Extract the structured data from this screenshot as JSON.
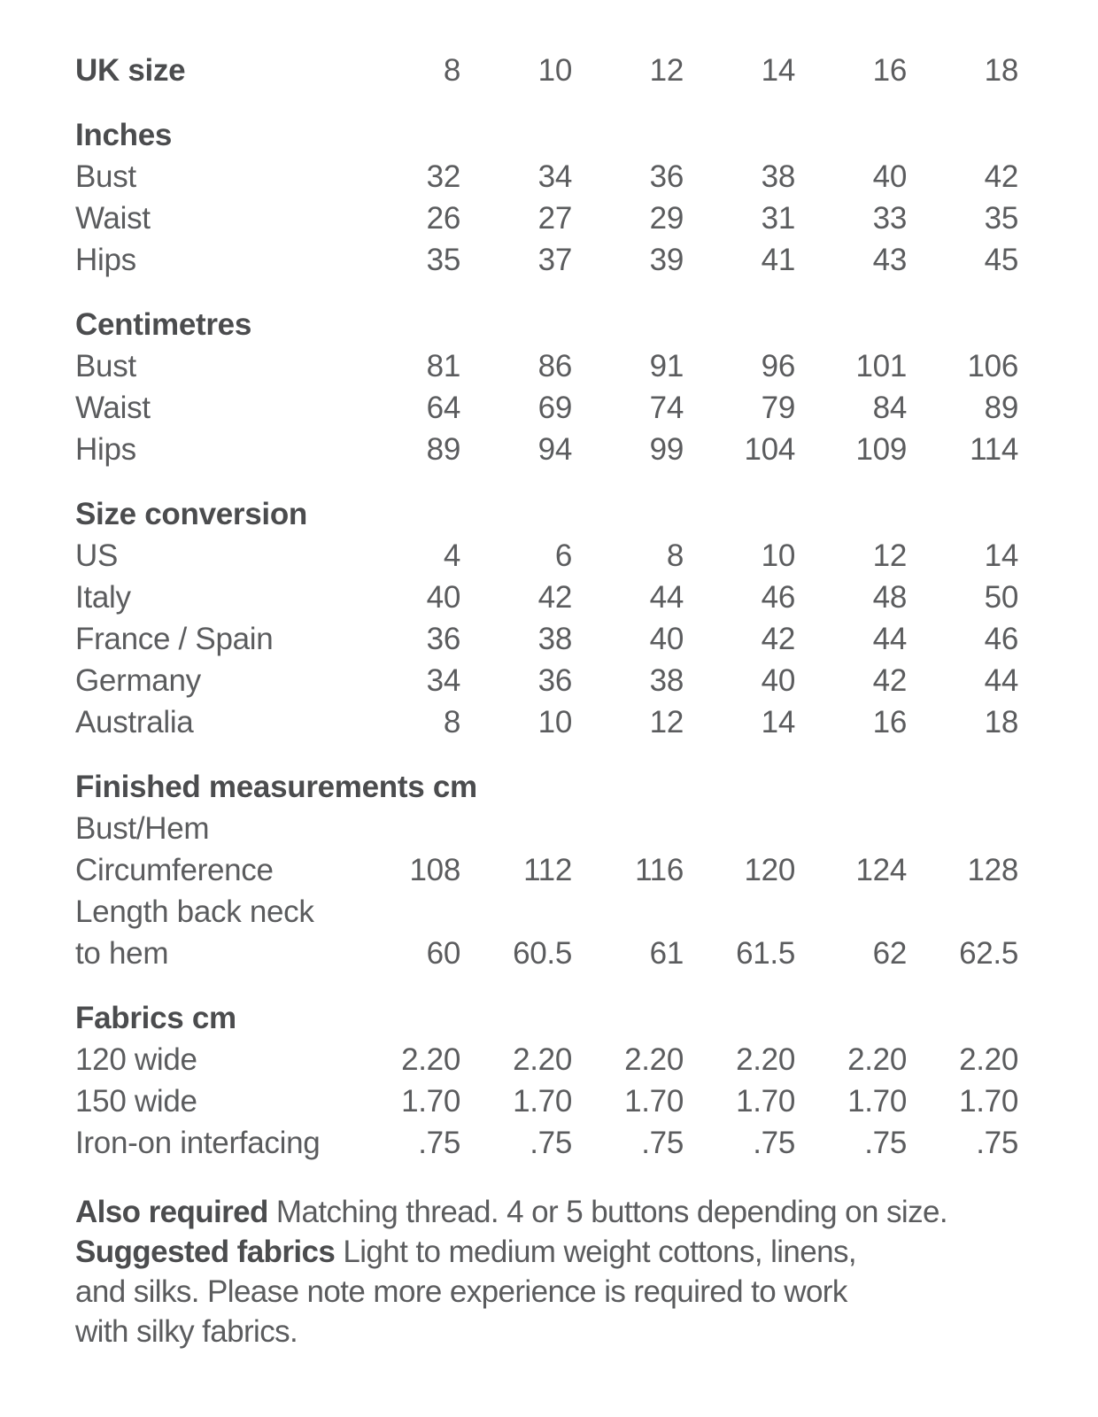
{
  "colors": {
    "background": "#ffffff",
    "body_text": "#5b5c5e",
    "heading_text": "#4b4c4e"
  },
  "table": {
    "header": {
      "label": "UK size",
      "values": [
        "8",
        "10",
        "12",
        "14",
        "16",
        "18"
      ]
    },
    "sections": [
      {
        "title": "Inches",
        "rows": [
          {
            "label": "Bust",
            "values": [
              "32",
              "34",
              "36",
              "38",
              "40",
              "42"
            ]
          },
          {
            "label": "Waist",
            "values": [
              "26",
              "27",
              "29",
              "31",
              "33",
              "35"
            ]
          },
          {
            "label": "Hips",
            "values": [
              "35",
              "37",
              "39",
              "41",
              "43",
              "45"
            ]
          }
        ]
      },
      {
        "title": "Centimetres",
        "rows": [
          {
            "label": "Bust",
            "values": [
              "81",
              "86",
              "91",
              "96",
              "101",
              "106"
            ]
          },
          {
            "label": "Waist",
            "values": [
              "64",
              "69",
              "74",
              "79",
              "84",
              "89"
            ]
          },
          {
            "label": "Hips",
            "values": [
              "89",
              "94",
              "99",
              "104",
              "109",
              "114"
            ]
          }
        ]
      },
      {
        "title": "Size conversion",
        "rows": [
          {
            "label": "US",
            "values": [
              "4",
              "6",
              "8",
              "10",
              "12",
              "14"
            ]
          },
          {
            "label": "Italy",
            "values": [
              "40",
              "42",
              "44",
              "46",
              "48",
              "50"
            ]
          },
          {
            "label": "France / Spain",
            "values": [
              "36",
              "38",
              "40",
              "42",
              "44",
              "46"
            ]
          },
          {
            "label": "Germany",
            "values": [
              "34",
              "36",
              "38",
              "40",
              "42",
              "44"
            ]
          },
          {
            "label": "Australia",
            "values": [
              "8",
              "10",
              "12",
              "14",
              "16",
              "18"
            ]
          }
        ]
      },
      {
        "title": "Finished measurements cm",
        "rows": [
          {
            "label": "Bust/Hem",
            "values": []
          },
          {
            "label": "Circumference",
            "values": [
              "108",
              "112",
              "116",
              "120",
              "124",
              "128"
            ]
          },
          {
            "label": "Length back neck",
            "values": []
          },
          {
            "label": "to hem",
            "values": [
              "60",
              "60.5",
              "61",
              "61.5",
              "62",
              "62.5"
            ]
          }
        ]
      },
      {
        "title": "Fabrics cm",
        "rows": [
          {
            "label": "120 wide",
            "values": [
              "2.20",
              "2.20",
              "2.20",
              "2.20",
              "2.20",
              "2.20"
            ]
          },
          {
            "label": "150 wide",
            "values": [
              "1.70",
              "1.70",
              "1.70",
              "1.70",
              "1.70",
              "1.70"
            ]
          },
          {
            "label": "Iron-on interfacing",
            "values": [
              ".75",
              ".75",
              ".75",
              ".75",
              ".75",
              ".75"
            ]
          }
        ]
      }
    ]
  },
  "notes": {
    "also_required_label": "Also required",
    "also_required_text": " Matching thread. 4 or 5 buttons depending on size.",
    "suggested_fabrics_label": "Suggested fabrics",
    "suggested_fabrics_line1": " Light to medium weight cottons, linens,",
    "suggested_fabrics_line2": "and silks. Please note more experience is required to work",
    "suggested_fabrics_line3": "with silky fabrics."
  }
}
